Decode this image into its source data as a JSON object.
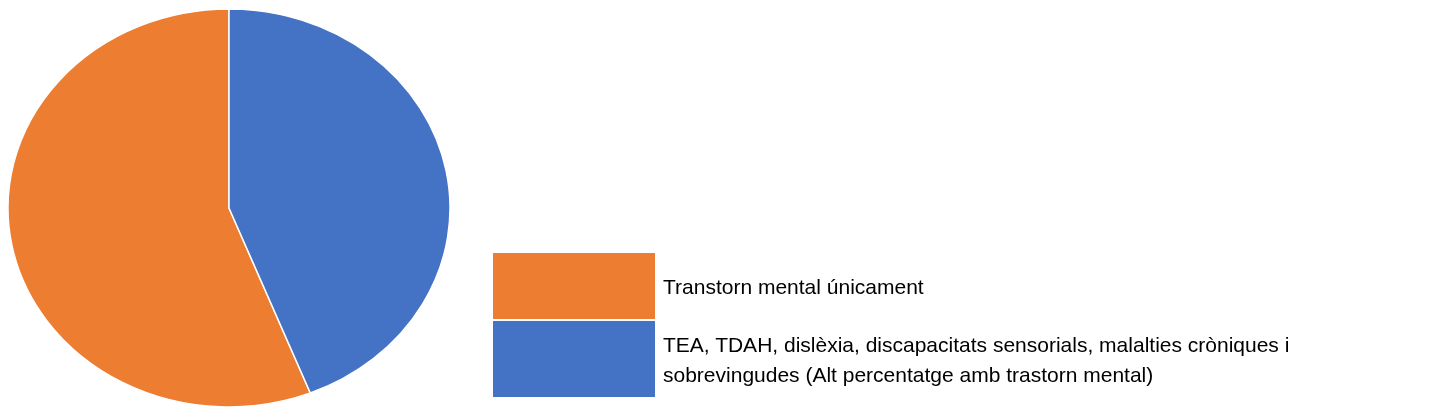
{
  "chart_data": {
    "type": "pie",
    "categories": [
      "Transtorn mental únicament",
      "TEA, TDAH, dislèxia, discapacitats sensorials, malalties cròniques i sobrevingudes (Alt percentatge amb trastorn mental)"
    ],
    "values": [
      56,
      44
    ],
    "colors": [
      "#ed7d31",
      "#4472c4"
    ],
    "legend": "bottom right"
  }
}
